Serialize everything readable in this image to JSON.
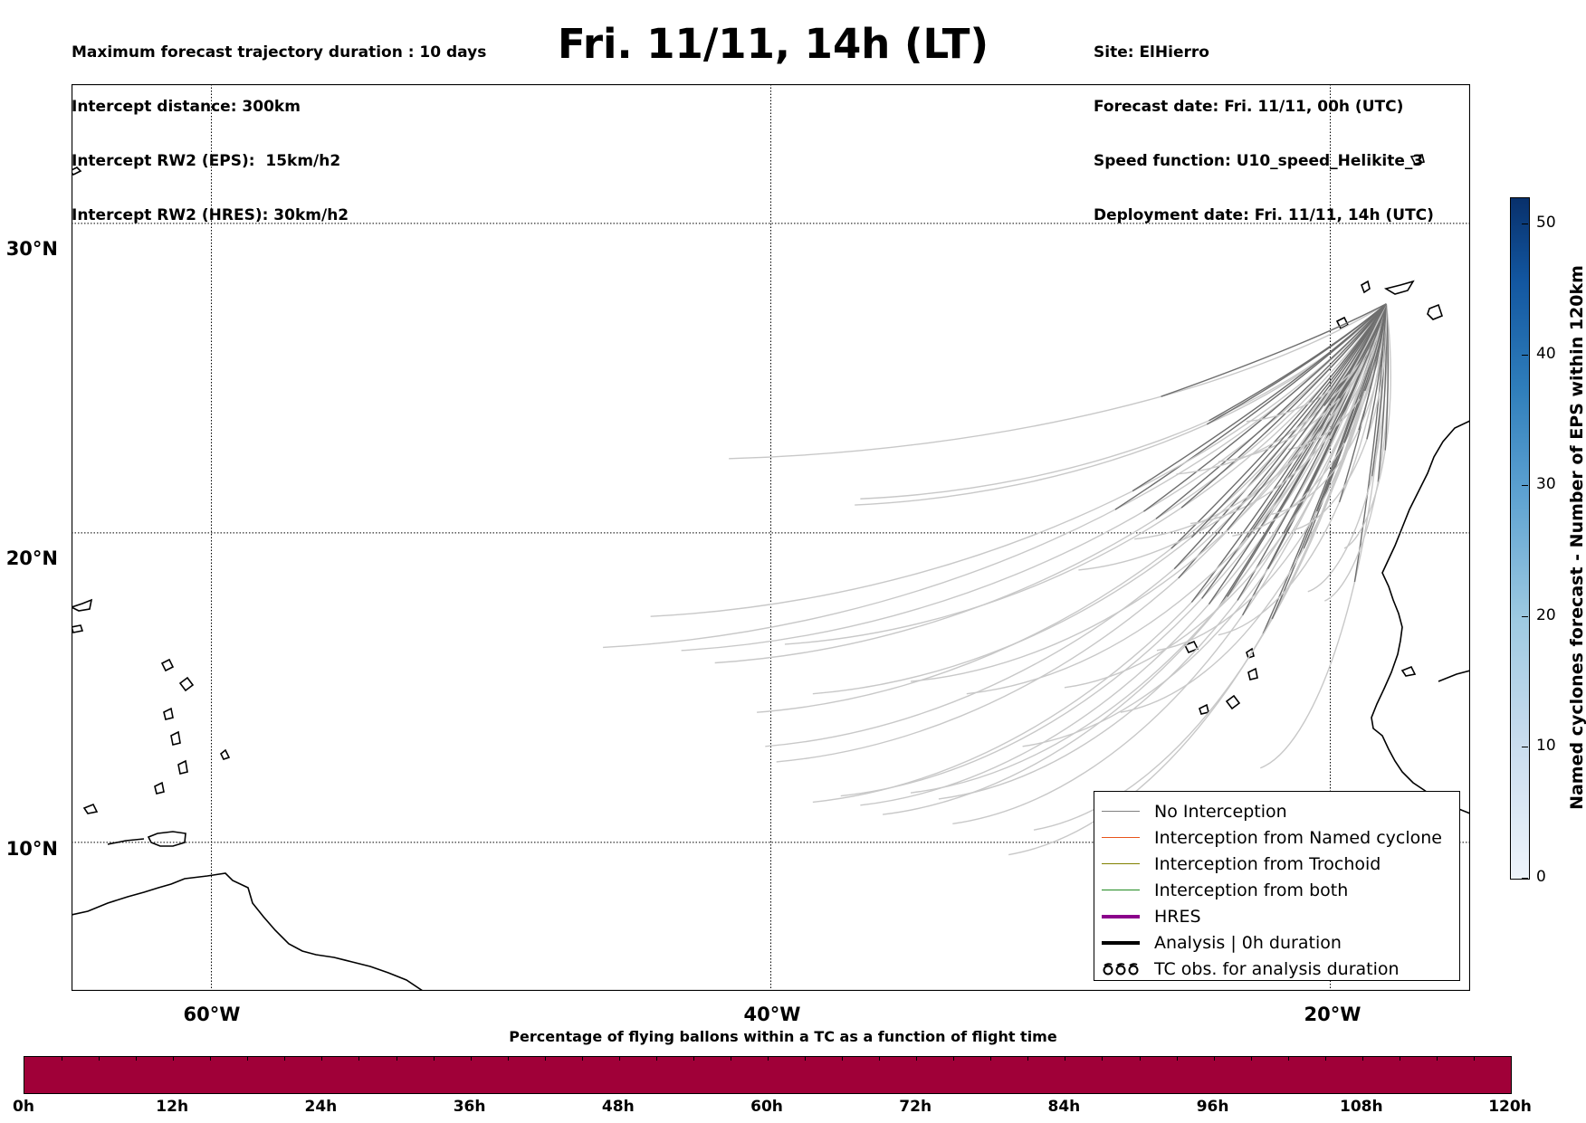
{
  "header_left": [
    "Maximum forecast trajectory duration : 10 days",
    "Intercept distance: 300km",
    "Intercept RW2 (EPS):  15km/h2",
    "Intercept RW2 (HRES): 30km/h2"
  ],
  "header_right": [
    "Site: ElHierro",
    "Forecast date: Fri. 11/11, 00h (UTC)",
    "Speed function: U10_speed_Helikite_3",
    "Deployment date: Fri. 11/11, 14h (UTC)"
  ],
  "title": "Fri. 11/11, 14h (LT)",
  "map": {
    "lat_labels": [
      "30°N",
      "20°N",
      "10°N"
    ],
    "lon_labels": [
      "60°W",
      "40°W",
      "20°W"
    ],
    "lon_range": [
      -65,
      -15
    ],
    "lat_range": [
      5.2,
      34.5
    ],
    "gridlines": "dotted",
    "coastline_color": "#000000"
  },
  "legend": {
    "items": [
      {
        "label": "No Interception",
        "color": "#808080",
        "style": "thin-line"
      },
      {
        "label": "Interception from Named cyclone",
        "color": "#e8541a",
        "style": "thin-line"
      },
      {
        "label": "Interception from Trochoid",
        "color": "#808000",
        "style": "thin-line"
      },
      {
        "label": "Interception from both",
        "color": "#228b22",
        "style": "thin-line"
      },
      {
        "label": "HRES",
        "color": "#8b008b",
        "style": "thick-line"
      },
      {
        "label": "Analysis | 0h duration",
        "color": "#000000",
        "style": "thick-line"
      },
      {
        "label": "TC obs. for analysis duration",
        "color": "#000000",
        "style": "tc-symbols",
        "icon": "tc-symbol-icon"
      }
    ]
  },
  "side_colorbar": {
    "label": "Named cyclones forecast - Number of EPS within 120km",
    "ticks": [
      "0",
      "10",
      "20",
      "30",
      "40",
      "50"
    ],
    "range": [
      0,
      52
    ],
    "color_low": "#eef4fb",
    "color_high": "#08306b"
  },
  "bottom_colorbar": {
    "title": "Percentage of flying ballons within a TC as a function of flight time",
    "ticks": [
      "0h",
      "12h",
      "24h",
      "36h",
      "48h",
      "60h",
      "72h",
      "84h",
      "96h",
      "108h",
      "120h"
    ],
    "fill_color": "#a00038"
  },
  "trajectories": {
    "origin": {
      "lon": -18.0,
      "lat": 27.4
    },
    "early_color": "#6e6e6e",
    "late_color": "#c8c8c8"
  }
}
